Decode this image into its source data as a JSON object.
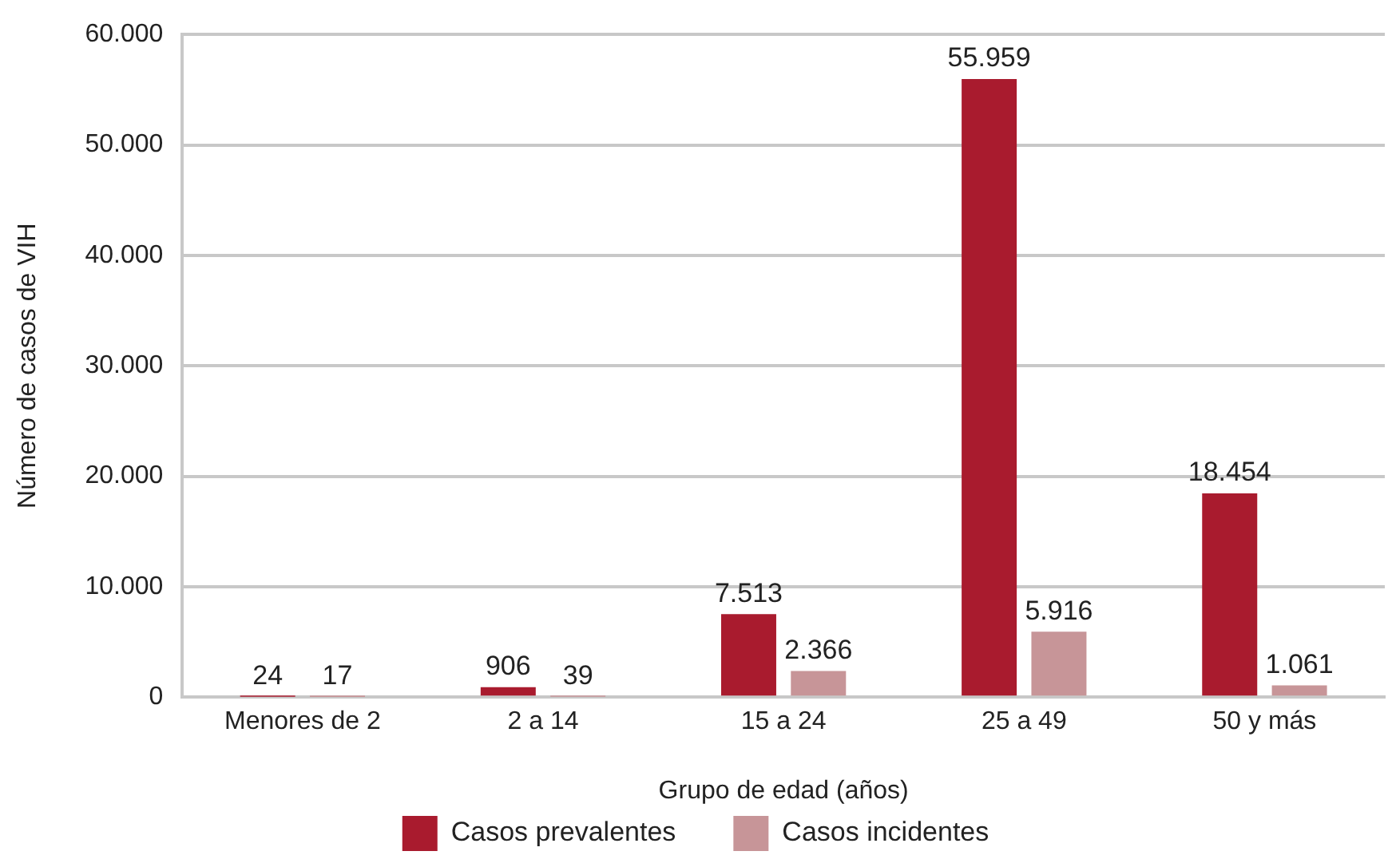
{
  "chart_data": {
    "type": "bar",
    "xlabel": "Grupo de edad (años)",
    "ylabel": "Número de casos de VIH",
    "categories": [
      "Menores de 2",
      "2 a 14",
      "15 a 24",
      "25 a 49",
      "50 y más"
    ],
    "series": [
      {
        "name": "Casos prevalentes",
        "color": "#a91b2e",
        "values": [
          24,
          906,
          7513,
          55959,
          18454
        ],
        "value_labels": [
          "24",
          "906",
          "7.513",
          "55.959",
          "18.454"
        ]
      },
      {
        "name": "Casos incidentes",
        "color": "#c79598",
        "values": [
          17,
          39,
          2366,
          5916,
          1061
        ],
        "value_labels": [
          "17",
          "39",
          "2.366",
          "5.916",
          "1.061"
        ]
      }
    ],
    "ylim": [
      0,
      60000
    ],
    "yticks": [
      0,
      {
        "value": 10000,
        "label": "10.000"
      },
      {
        "value": 20000,
        "label": "20.000"
      },
      {
        "value": 30000,
        "label": "30.000"
      },
      {
        "value": 40000,
        "label": "40.000"
      },
      {
        "value": 50000,
        "label": "50.000"
      },
      {
        "value": 60000,
        "label": "60.000"
      }
    ],
    "grid": "y",
    "legend": "bottom"
  }
}
